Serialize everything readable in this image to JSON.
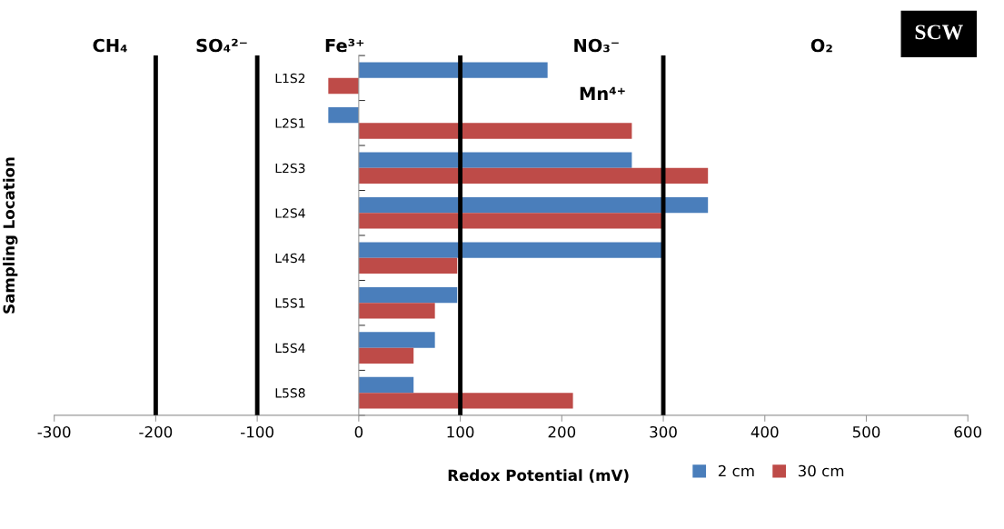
{
  "chart_data": {
    "type": "bar",
    "orientation": "horizontal",
    "title": "SCW",
    "xlabel": "Redox Potential (mV)",
    "ylabel": "Sampling Location",
    "categories": [
      "L1S2",
      "L2S1",
      "L2S3",
      "L2S4",
      "L4S4",
      "L5S1",
      "L5S4",
      "L5S8"
    ],
    "series": [
      {
        "name": "2 cm",
        "color": "#4a7ebb",
        "values": [
          186,
          -30,
          269,
          344,
          300,
          97,
          75,
          54
        ]
      },
      {
        "name": "30 cm",
        "color": "#be4b48",
        "values": [
          -30,
          269,
          344,
          300,
          97,
          75,
          54,
          211
        ]
      }
    ],
    "xlim": [
      -300,
      600
    ],
    "xticks": [
      -300,
      -200,
      -100,
      0,
      100,
      200,
      300,
      400,
      500,
      600
    ],
    "ref_lines": [
      {
        "axis": "x",
        "value": -200,
        "color": "#000000"
      },
      {
        "axis": "x",
        "value": -100,
        "color": "#000000"
      },
      {
        "axis": "x",
        "value": 100,
        "color": "#000000"
      },
      {
        "axis": "x",
        "value": 300,
        "color": "#000000"
      }
    ],
    "annotations": [
      "CH₄",
      "SO₄²⁻",
      "Fe³⁺",
      "NO₃⁻",
      "Mn⁴⁺",
      "O₂"
    ],
    "grid": false,
    "legend": "bottom right"
  }
}
